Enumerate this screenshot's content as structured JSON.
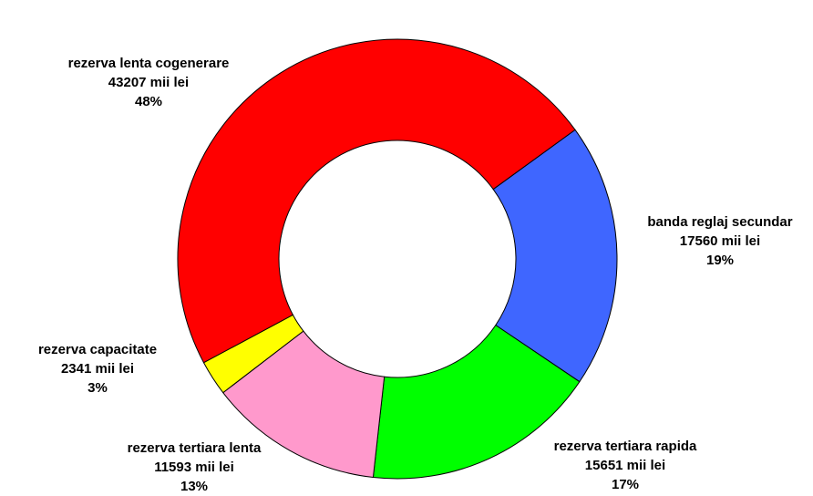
{
  "chart_data": {
    "type": "donut",
    "categories": [
      "banda reglaj secundar",
      "rezerva tertiara rapida",
      "rezerva tertiara lenta",
      "rezerva capacitate",
      "rezerva lenta cogenerare"
    ],
    "values": [
      17560,
      15651,
      11593,
      2341,
      43207
    ],
    "value_labels": [
      "17560 mii lei",
      "15651 mii lei",
      "11593 mii lei",
      "2341 mii lei",
      "43207 mii lei"
    ],
    "percent_labels": [
      "19%",
      "17%",
      "13%",
      "3%",
      "48%"
    ],
    "colors": [
      "#3f66ff",
      "#00ff00",
      "#ff99cc",
      "#ffff00",
      "#ff0000"
    ]
  }
}
